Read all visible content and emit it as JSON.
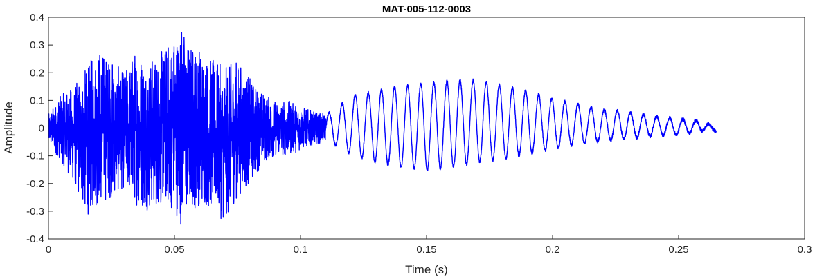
{
  "chart_data": {
    "type": "line",
    "title": "MAT-005-112-0003",
    "xlabel": "Time (s)",
    "ylabel": "Amplitude",
    "xlim": [
      0,
      0.3
    ],
    "ylim": [
      -0.4,
      0.4
    ],
    "xticks": [
      0,
      0.05,
      0.1,
      0.15,
      0.2,
      0.25,
      0.3
    ],
    "xtick_labels": [
      "0",
      "0.05",
      "0.1",
      "0.15",
      "0.2",
      "0.25",
      "0.3"
    ],
    "yticks": [
      -0.4,
      -0.3,
      -0.2,
      -0.1,
      0,
      0.1,
      0.2,
      0.3,
      0.4
    ],
    "ytick_labels": [
      "-0.4",
      "-0.3",
      "-0.2",
      "-0.1",
      "0",
      "0.1",
      "0.2",
      "0.3",
      "0.4"
    ],
    "grid": true,
    "series": [
      {
        "color": "#0000ff",
        "x": [
          0,
          0.005,
          0.01,
          0.015,
          0.02,
          0.025,
          0.03,
          0.035,
          0.04,
          0.045,
          0.05,
          0.053,
          0.055,
          0.06,
          0.065,
          0.07,
          0.075,
          0.08,
          0.085,
          0.09,
          0.095,
          0.1,
          0.105,
          0.11,
          0.115,
          0.12,
          0.13,
          0.14,
          0.15,
          0.16,
          0.17,
          0.18,
          0.19,
          0.2,
          0.21,
          0.22,
          0.23,
          0.24,
          0.25,
          0.26,
          0.265
        ],
        "upper_envelope": [
          0.05,
          0.12,
          0.15,
          0.22,
          0.3,
          0.25,
          0.2,
          0.3,
          0.25,
          0.28,
          0.35,
          0.39,
          0.32,
          0.3,
          0.25,
          0.22,
          0.25,
          0.18,
          0.13,
          0.1,
          0.1,
          0.08,
          0.06,
          0.05,
          0.08,
          0.12,
          0.14,
          0.16,
          0.17,
          0.18,
          0.18,
          0.16,
          0.14,
          0.11,
          0.09,
          0.07,
          0.06,
          0.045,
          0.035,
          0.025,
          0.0
        ],
        "lower_envelope": [
          -0.06,
          -0.12,
          -0.2,
          -0.32,
          -0.28,
          -0.25,
          -0.22,
          -0.28,
          -0.3,
          -0.28,
          -0.3,
          -0.36,
          -0.32,
          -0.28,
          -0.3,
          -0.34,
          -0.25,
          -0.2,
          -0.13,
          -0.1,
          -0.1,
          -0.08,
          -0.06,
          -0.05,
          -0.07,
          -0.1,
          -0.13,
          -0.15,
          -0.16,
          -0.15,
          -0.13,
          -0.12,
          -0.1,
          -0.08,
          -0.06,
          -0.05,
          -0.04,
          -0.03,
          -0.025,
          -0.01,
          -0.01
        ],
        "oscillation_start": 0.11,
        "oscillation_period": 0.0052
      }
    ]
  }
}
